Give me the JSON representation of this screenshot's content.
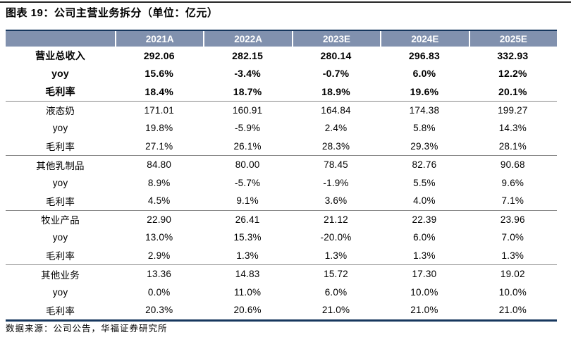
{
  "figure": {
    "title": "图表 19：公司主营业务拆分（单位：亿元）",
    "source": "数据来源：公司公告，华福证券研究所"
  },
  "colors": {
    "header_bg": "#8191AE",
    "header_text": "#FFFFFF",
    "navy_border": "#17375E",
    "group_separator": "#8A8A8A",
    "top_rule": "#262626"
  },
  "chart_data": {
    "type": "table",
    "title": "图表 19：公司主营业务拆分（单位：亿元）",
    "unit": "亿元",
    "columns": [
      "",
      "2021A",
      "2022A",
      "2023E",
      "2024E",
      "2025E"
    ],
    "row_groups": [
      {
        "bold": true,
        "rows": [
          {
            "label": "营业总收入",
            "values": [
              "292.06",
              "282.15",
              "280.14",
              "296.83",
              "332.93"
            ]
          },
          {
            "label": "yoy",
            "values": [
              "15.6%",
              "-3.4%",
              "-0.7%",
              "6.0%",
              "12.2%"
            ]
          },
          {
            "label": "毛利率",
            "values": [
              "18.4%",
              "18.7%",
              "18.9%",
              "19.6%",
              "20.1%"
            ]
          }
        ]
      },
      {
        "bold": false,
        "rows": [
          {
            "label": "液态奶",
            "values": [
              "171.01",
              "160.91",
              "164.84",
              "174.38",
              "199.27"
            ]
          },
          {
            "label": "yoy",
            "values": [
              "19.8%",
              "-5.9%",
              "2.4%",
              "5.8%",
              "14.3%"
            ]
          },
          {
            "label": "毛利率",
            "values": [
              "27.1%",
              "26.1%",
              "28.3%",
              "29.3%",
              "28.1%"
            ]
          }
        ]
      },
      {
        "bold": false,
        "rows": [
          {
            "label": "其他乳制品",
            "values": [
              "84.80",
              "80.00",
              "78.45",
              "82.76",
              "90.68"
            ]
          },
          {
            "label": "yoy",
            "values": [
              "8.9%",
              "-5.7%",
              "-1.9%",
              "5.5%",
              "9.6%"
            ]
          },
          {
            "label": "毛利率",
            "values": [
              "4.5%",
              "9.1%",
              "3.6%",
              "4.0%",
              "7.1%"
            ]
          }
        ]
      },
      {
        "bold": false,
        "rows": [
          {
            "label": "牧业产品",
            "values": [
              "22.90",
              "26.41",
              "21.12",
              "22.39",
              "23.96"
            ]
          },
          {
            "label": "yoy",
            "values": [
              "13.0%",
              "15.3%",
              "-20.0%",
              "6.0%",
              "7.0%"
            ]
          },
          {
            "label": "毛利率",
            "values": [
              "2.9%",
              "1.3%",
              "1.3%",
              "1.3%",
              "1.3%"
            ]
          }
        ]
      },
      {
        "bold": false,
        "rows": [
          {
            "label": "其他业务",
            "values": [
              "13.36",
              "14.83",
              "15.72",
              "17.30",
              "19.02"
            ]
          },
          {
            "label": "yoy",
            "values": [
              "0.0%",
              "11.0%",
              "6.0%",
              "10.0%",
              "10.0%"
            ]
          },
          {
            "label": "毛利率",
            "values": [
              "20.3%",
              "20.6%",
              "21.0%",
              "21.0%",
              "21.0%"
            ]
          }
        ]
      }
    ]
  }
}
